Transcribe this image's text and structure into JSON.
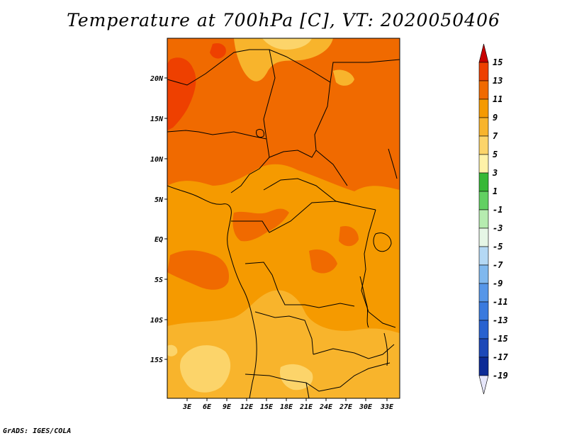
{
  "title": "Temperature at 700hPa [C], VT: 2020050406",
  "credit": "GrADS: IGES/COLA",
  "map": {
    "lat_ticks": [
      "20N",
      "15N",
      "10N",
      "5N",
      "EQ",
      "5S",
      "10S",
      "15S"
    ],
    "lon_ticks": [
      "3E",
      "6E",
      "9E",
      "12E",
      "15E",
      "18E",
      "21E",
      "24E",
      "27E",
      "30E",
      "33E"
    ]
  },
  "colorbar": {
    "levels": [
      {
        "label": "15",
        "color": "#d62000"
      },
      {
        "label": "13",
        "color": "#ee4000"
      },
      {
        "label": "11",
        "color": "#f06a00"
      },
      {
        "label": "9",
        "color": "#f59a00"
      },
      {
        "label": "7",
        "color": "#f8b42c"
      },
      {
        "label": "5",
        "color": "#fcd46a"
      },
      {
        "label": "3",
        "color": "#fff2a8"
      },
      {
        "label": "1",
        "color": "#36b836"
      },
      {
        "label": "-1",
        "color": "#62d062"
      },
      {
        "label": "-3",
        "color": "#b6ecb0"
      },
      {
        "label": "-5",
        "color": "#e6f6e6"
      },
      {
        "label": "-7",
        "color": "#b4d8f4"
      },
      {
        "label": "-9",
        "color": "#80b8ee"
      },
      {
        "label": "-11",
        "color": "#5696e8"
      },
      {
        "label": "-13",
        "color": "#3a7ade"
      },
      {
        "label": "-15",
        "color": "#2862d0"
      },
      {
        "label": "-17",
        "color": "#1c48b8"
      },
      {
        "label": "-19",
        "color": "#0c2a96"
      }
    ],
    "bottom_color": "#e6e6fa",
    "top_color": "#c80000"
  }
}
